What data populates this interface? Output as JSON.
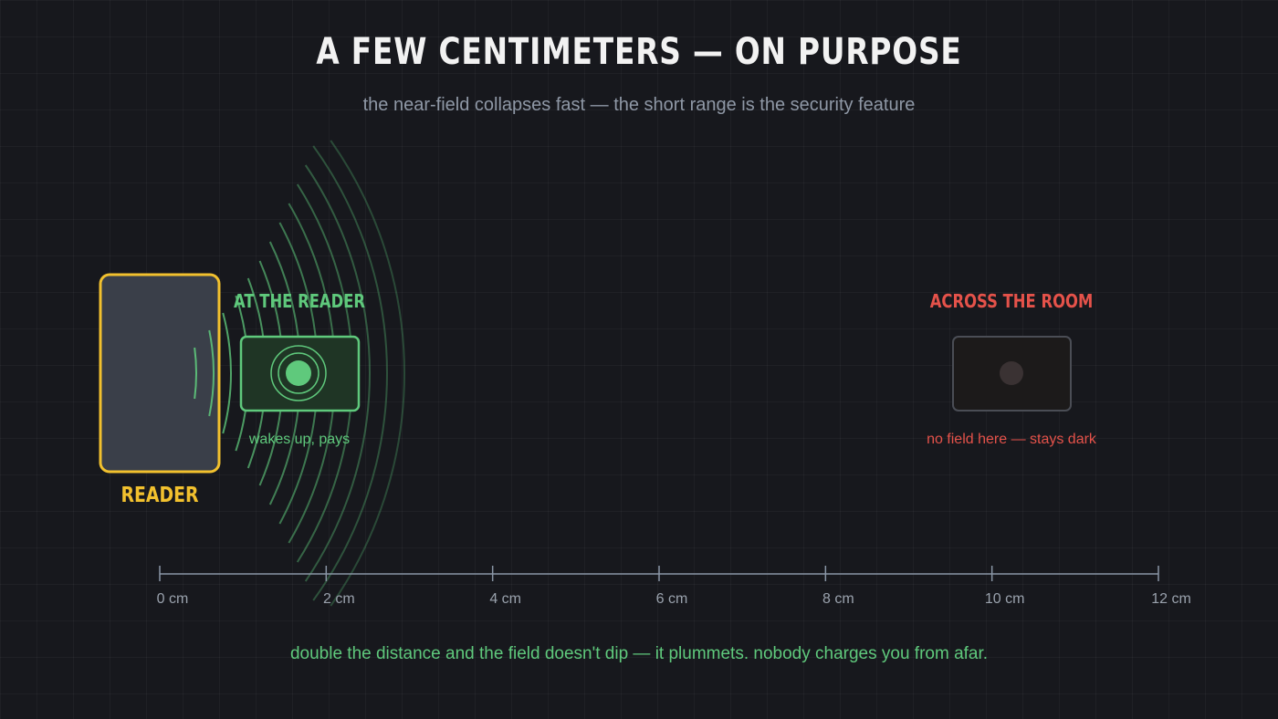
{
  "title": "A FEW CENTIMETERS — ON PURPOSE",
  "subtitle": "the near-field collapses fast — the short range is the security feature",
  "reader": {
    "label": "READER"
  },
  "near_card": {
    "label": "AT THE READER",
    "note": "wakes up, pays"
  },
  "far_card": {
    "label": "ACROSS THE ROOM",
    "note": "no field here — stays dark"
  },
  "axis": {
    "ticks": [
      "0 cm",
      "2 cm",
      "4 cm",
      "6 cm",
      "8 cm",
      "10 cm",
      "12 cm"
    ]
  },
  "caption": "double the distance and the field doesn't dip — it plummets. nobody charges you from afar.",
  "colors": {
    "reader": "#f2c12e",
    "field": "#5fc97c",
    "far": "#e5524a",
    "background": "#17181d"
  }
}
